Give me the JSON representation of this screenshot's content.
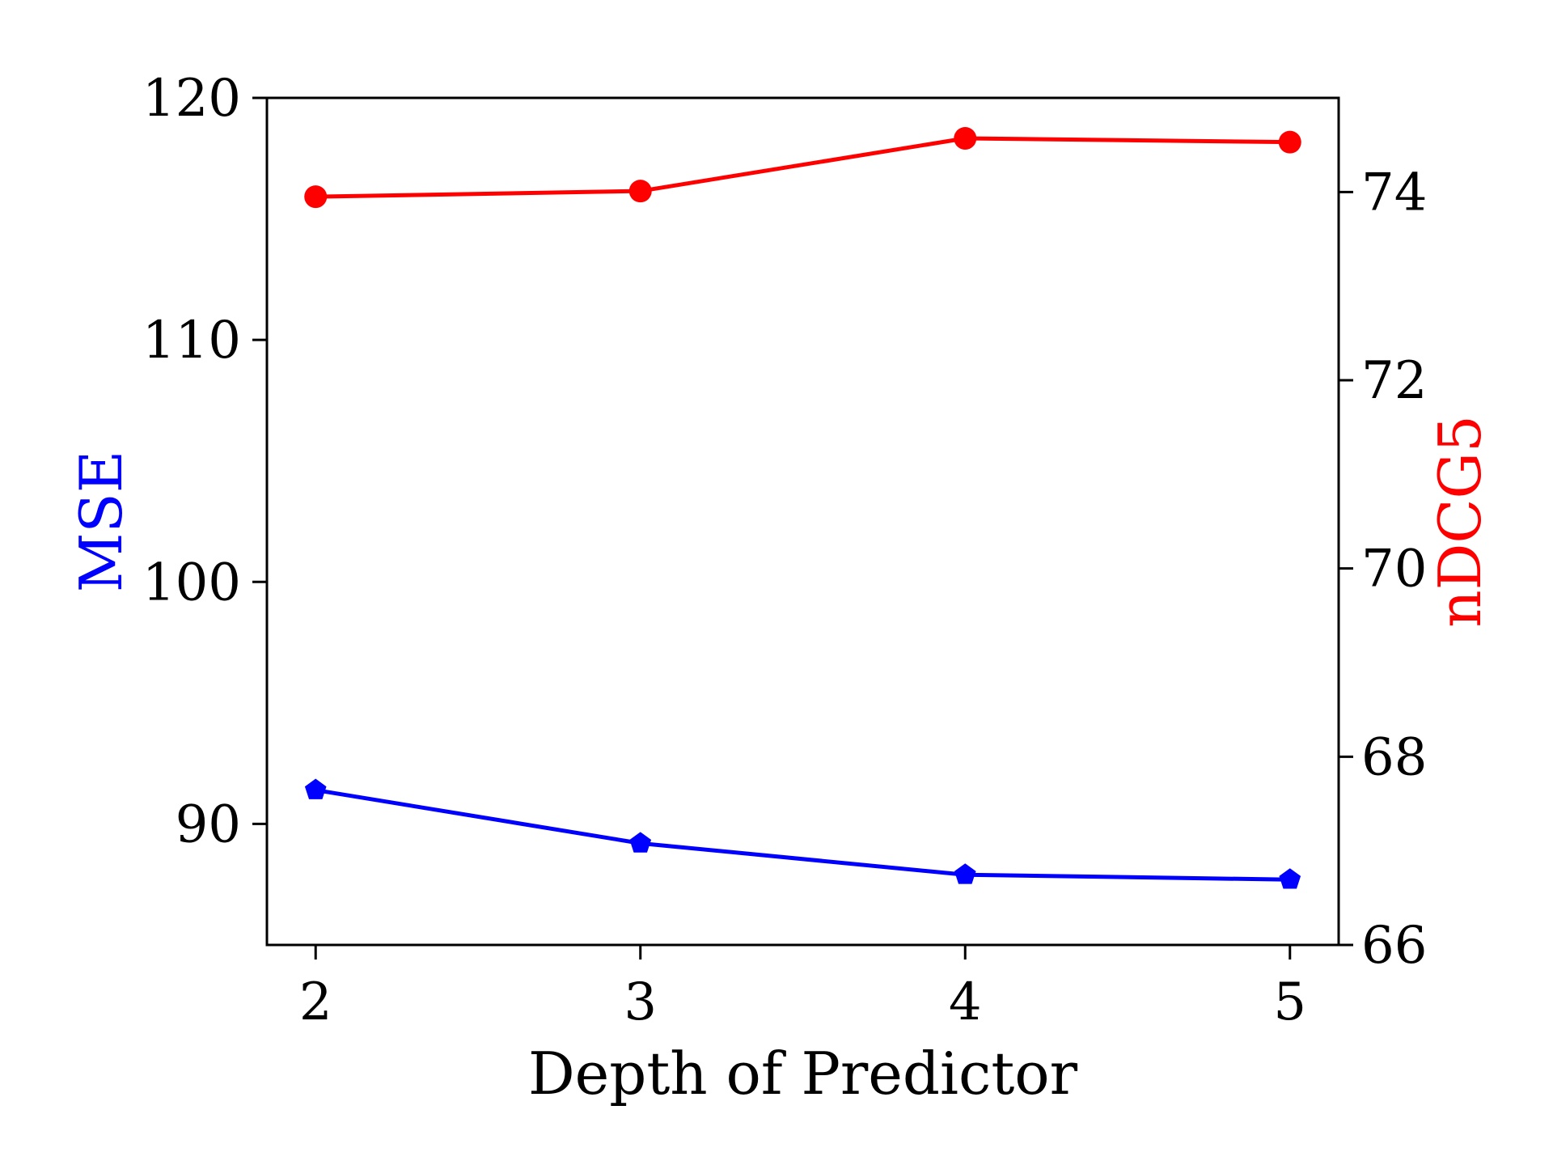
{
  "chart_data": {
    "type": "line",
    "xlabel": "Depth of Predictor",
    "ylabel_left": "MSE",
    "ylabel_right": "nDCG5",
    "x": [
      2,
      3,
      4,
      5
    ],
    "xlim": [
      1.85,
      5.15
    ],
    "xticks": [
      "2",
      "3",
      "4",
      "5"
    ],
    "ylim_left": [
      85,
      120
    ],
    "yticks_left": [
      "90",
      "100",
      "110",
      "120"
    ],
    "ylim_right": [
      66,
      75
    ],
    "yticks_right": [
      "66",
      "68",
      "70",
      "72",
      "74"
    ],
    "grid": false,
    "series": [
      {
        "axis": "left",
        "color": "#0000ff",
        "marker": "pentagon",
        "values": [
          91.4,
          89.2,
          87.9,
          87.7
        ]
      },
      {
        "axis": "right",
        "color": "#ff0000",
        "marker": "circle",
        "values": [
          73.95,
          74.01,
          74.57,
          74.53
        ]
      }
    ]
  }
}
